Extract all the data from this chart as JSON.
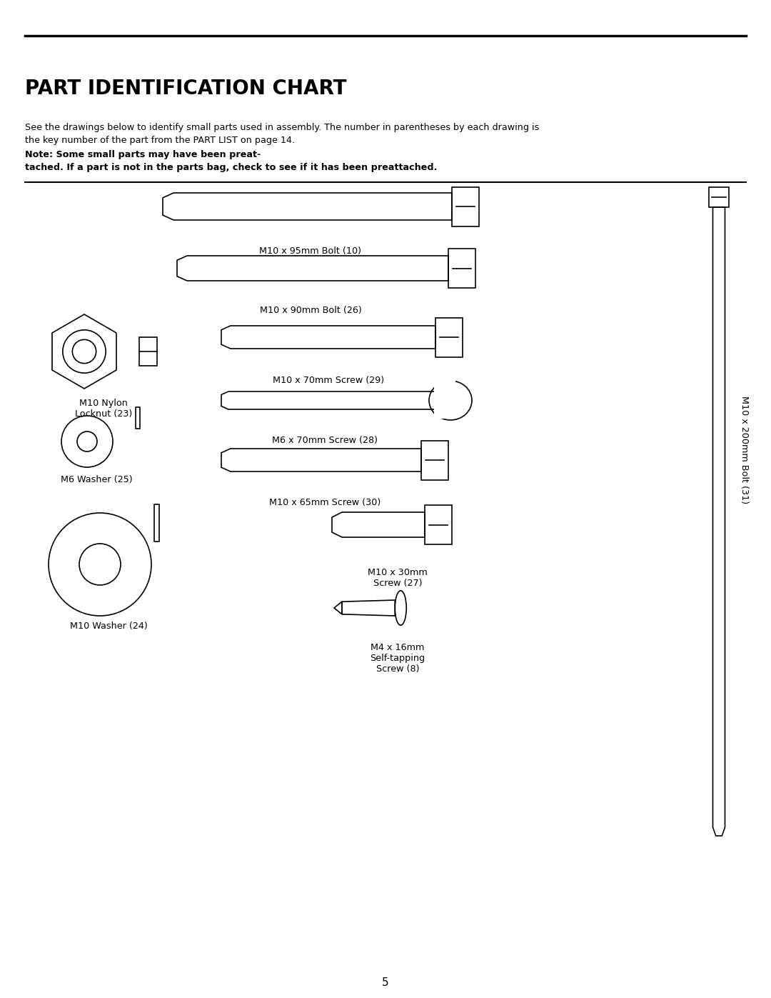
{
  "title": "PART IDENTIFICATION CHART",
  "description_normal": "See the drawings below to identify small parts used in assembly. The number in parentheses by each drawing is\nthe key number of the part from the PART LIST on page 14. ",
  "description_bold": "Note: Some small parts may have been preat-\ntached. If a part is not in the parts bag, check to see if it has been preattached.",
  "page_number": "5",
  "bg_color": "#ffffff",
  "line_color": "#000000",
  "parts": [
    {
      "label": "M10 x 95mm Bolt (10)",
      "type": "bolt_large"
    },
    {
      "label": "M10 x 90mm Bolt (26)",
      "type": "bolt_medium"
    },
    {
      "label": "M10 x 70mm Screw (29)",
      "type": "screw_hex"
    },
    {
      "label": "M6 x 70mm Screw (28)",
      "type": "screw_round"
    },
    {
      "label": "M10 x 65mm Screw (30)",
      "type": "screw_hex_small"
    },
    {
      "label": "M10 x 30mm\nScrew (27)",
      "type": "screw_short"
    },
    {
      "label": "M4 x 16mm\nSelf-tapping\nScrew (8)",
      "type": "screw_tapping"
    },
    {
      "label": "M10 Nylon\nLocknut (23)",
      "type": "nut"
    },
    {
      "label": "M6 Washer (25)",
      "type": "washer_small"
    },
    {
      "label": "M10 Washer (24)",
      "type": "washer_large"
    },
    {
      "label": "M10 x 200mm Bolt (31)",
      "type": "bolt_very_large"
    }
  ]
}
